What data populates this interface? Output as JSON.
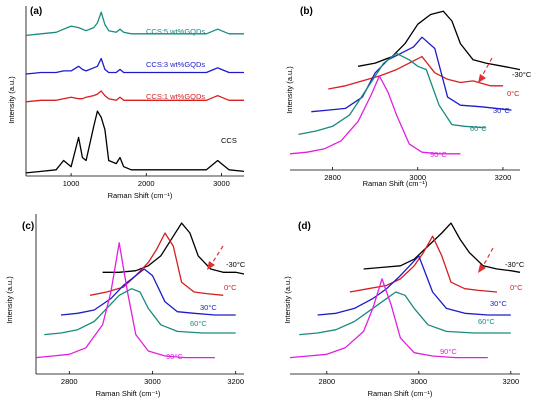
{
  "figure": {
    "panels": [
      {
        "letter": "(a)",
        "xlabel": "Raman Shift (cm⁻¹)",
        "ylabel": "Intensity (a.u.)",
        "xticks": [
          "1000",
          "2000",
          "3000"
        ],
        "series_labels": [
          "CCS:5 wt%GQDs",
          "CCS:3 wt%GQDs",
          "CCS:1 wt%GQDs",
          "CCS"
        ]
      },
      {
        "letter": "(b)",
        "xlabel": "Raman Shift (cm⁻¹)",
        "ylabel": "Intensity (a.u.)",
        "xticks": [
          "2800",
          "3000",
          "3200"
        ],
        "series_labels": [
          "-30°C",
          "0°C",
          "30°C",
          "60°C",
          "90°C"
        ]
      },
      {
        "letter": "(c)",
        "xlabel": "Raman Shift (cm⁻¹)",
        "ylabel": "Intensity (a.u.)",
        "xticks": [
          "2800",
          "3000",
          "3200"
        ],
        "series_labels": [
          "-30°C",
          "0°C",
          "30°C",
          "60°C",
          "90°C"
        ]
      },
      {
        "letter": "(d)",
        "xlabel": "Raman Shift (cm⁻¹)",
        "ylabel": "Intensity (a.u.)",
        "xticks": [
          "2800",
          "3000",
          "3200"
        ],
        "series_labels": [
          "-30°C",
          "0°C",
          "30°C",
          "60°C",
          "90°C"
        ]
      }
    ]
  },
  "colors": {
    "black": "#000000",
    "red": "#d42020",
    "blue": "#1c1cc8",
    "teal": "#1a8a80",
    "magenta": "#e020e0",
    "arrow": "#e03030"
  },
  "chart_data": [
    {
      "type": "line",
      "panel": "(a)",
      "title": "",
      "xlabel": "Raman Shift (cm⁻¹)",
      "ylabel": "Intensity (a.u.)",
      "xlim": [
        400,
        3300
      ],
      "x": [
        400,
        600,
        800,
        900,
        1000,
        1100,
        1150,
        1200,
        1300,
        1350,
        1400,
        1450,
        1500,
        1600,
        1650,
        1700,
        1800,
        2000,
        2200,
        2500,
        2800,
        2900,
        2950,
        3000,
        3100,
        3300
      ],
      "series": [
        {
          "name": "CCS:5 wt%GQDs",
          "color": "teal",
          "values": [
            0.91,
            0.92,
            0.93,
            0.95,
            0.97,
            0.96,
            0.95,
            0.94,
            0.96,
            0.99,
            1.06,
            0.98,
            0.94,
            0.93,
            0.95,
            0.93,
            0.92,
            0.92,
            0.92,
            0.92,
            0.92,
            0.94,
            0.95,
            0.94,
            0.92,
            0.92
          ]
        },
        {
          "name": "CCS:3 wt%GQDs",
          "color": "blue",
          "values": [
            0.66,
            0.67,
            0.67,
            0.68,
            0.68,
            0.71,
            0.69,
            0.68,
            0.7,
            0.71,
            0.76,
            0.69,
            0.67,
            0.67,
            0.69,
            0.67,
            0.67,
            0.67,
            0.67,
            0.67,
            0.67,
            0.69,
            0.7,
            0.69,
            0.67,
            0.67
          ]
        },
        {
          "name": "CCS:1 wt%GQDs",
          "color": "red",
          "values": [
            0.48,
            0.49,
            0.49,
            0.5,
            0.51,
            0.5,
            0.5,
            0.51,
            0.52,
            0.53,
            0.55,
            0.52,
            0.5,
            0.49,
            0.51,
            0.49,
            0.49,
            0.49,
            0.49,
            0.49,
            0.49,
            0.51,
            0.52,
            0.51,
            0.49,
            0.49
          ]
        },
        {
          "name": "CCS",
          "color": "black",
          "values": [
            0.02,
            0.03,
            0.04,
            0.1,
            0.06,
            0.25,
            0.12,
            0.1,
            0.32,
            0.42,
            0.38,
            0.3,
            0.1,
            0.08,
            0.12,
            0.06,
            0.04,
            0.04,
            0.04,
            0.04,
            0.04,
            0.08,
            0.1,
            0.08,
            0.04,
            0.03
          ]
        }
      ]
    },
    {
      "type": "line",
      "panel": "(b)",
      "title": "",
      "xlabel": "Raman Shift (cm⁻¹)",
      "ylabel": "Intensity (a.u.)",
      "xlim": [
        2700,
        3240
      ],
      "series": [
        {
          "name": "-30°C",
          "color": "black",
          "x": [
            2860,
            2900,
            2940,
            2970,
            3000,
            3030,
            3060,
            3080,
            3100,
            3130,
            3160,
            3200,
            3240
          ],
          "values": [
            0.64,
            0.66,
            0.7,
            0.78,
            0.9,
            0.96,
            0.98,
            0.92,
            0.78,
            0.68,
            0.66,
            0.64,
            0.62
          ]
        },
        {
          "name": "0°C",
          "color": "red",
          "x": [
            2790,
            2830,
            2870,
            2910,
            2950,
            2980,
            3010,
            3040,
            3070,
            3100,
            3130,
            3170,
            3200
          ],
          "values": [
            0.5,
            0.52,
            0.55,
            0.58,
            0.62,
            0.66,
            0.7,
            0.6,
            0.56,
            0.54,
            0.55,
            0.52,
            0.52
          ]
        },
        {
          "name": "30°C",
          "color": "blue",
          "x": [
            2750,
            2790,
            2830,
            2870,
            2900,
            2930,
            2960,
            2990,
            3010,
            3040,
            3070,
            3100,
            3150,
            3220
          ],
          "values": [
            0.36,
            0.37,
            0.38,
            0.45,
            0.6,
            0.68,
            0.72,
            0.76,
            0.82,
            0.75,
            0.45,
            0.4,
            0.39,
            0.37
          ]
        },
        {
          "name": "60°C",
          "color": "teal",
          "x": [
            2720,
            2760,
            2800,
            2840,
            2880,
            2920,
            2950,
            2980,
            3000,
            3020,
            3050,
            3080,
            3110,
            3160
          ],
          "values": [
            0.22,
            0.24,
            0.27,
            0.34,
            0.5,
            0.66,
            0.72,
            0.68,
            0.64,
            0.62,
            0.4,
            0.28,
            0.27,
            0.26
          ]
        },
        {
          "name": "90°C",
          "color": "magenta",
          "x": [
            2700,
            2740,
            2780,
            2820,
            2860,
            2890,
            2910,
            2930,
            2950,
            2980,
            3010,
            3050,
            3100
          ],
          "values": [
            0.1,
            0.11,
            0.13,
            0.18,
            0.3,
            0.46,
            0.58,
            0.48,
            0.34,
            0.16,
            0.11,
            0.1,
            0.1
          ]
        }
      ]
    },
    {
      "type": "line",
      "panel": "(c)",
      "title": "",
      "xlabel": "Raman Shift (cm⁻¹)",
      "ylabel": "Intensity (a.u.)",
      "xlim": [
        2720,
        3220
      ],
      "series": [
        {
          "name": "-30°C",
          "color": "black",
          "x": [
            2880,
            2920,
            2960,
            2990,
            3020,
            3050,
            3070,
            3090,
            3110,
            3140,
            3170,
            3200,
            3220
          ],
          "values": [
            0.62,
            0.62,
            0.63,
            0.66,
            0.72,
            0.84,
            0.92,
            0.86,
            0.72,
            0.64,
            0.62,
            0.62,
            0.61
          ]
        },
        {
          "name": "0°C",
          "color": "red",
          "x": [
            2850,
            2890,
            2930,
            2960,
            2990,
            3010,
            3030,
            3050,
            3070,
            3100,
            3130,
            3170
          ],
          "values": [
            0.48,
            0.5,
            0.53,
            0.6,
            0.68,
            0.76,
            0.86,
            0.78,
            0.56,
            0.5,
            0.49,
            0.48
          ]
        },
        {
          "name": "30°C",
          "color": "blue",
          "x": [
            2780,
            2820,
            2860,
            2900,
            2930,
            2960,
            2980,
            3000,
            3030,
            3060,
            3100,
            3150,
            3200
          ],
          "values": [
            0.36,
            0.37,
            0.39,
            0.46,
            0.54,
            0.6,
            0.64,
            0.6,
            0.44,
            0.38,
            0.37,
            0.36,
            0.36
          ]
        },
        {
          "name": "60°C",
          "color": "teal",
          "x": [
            2740,
            2780,
            2820,
            2860,
            2890,
            2920,
            2950,
            2970,
            2990,
            3020,
            3060,
            3120,
            3200
          ],
          "values": [
            0.24,
            0.25,
            0.27,
            0.32,
            0.4,
            0.48,
            0.52,
            0.5,
            0.4,
            0.3,
            0.26,
            0.25,
            0.25
          ]
        },
        {
          "name": "90°C",
          "color": "magenta",
          "x": [
            2720,
            2760,
            2800,
            2840,
            2880,
            2900,
            2920,
            2940,
            2960,
            2990,
            3030,
            3080,
            3150
          ],
          "values": [
            0.1,
            0.11,
            0.12,
            0.16,
            0.3,
            0.5,
            0.8,
            0.5,
            0.24,
            0.14,
            0.11,
            0.1,
            0.1
          ]
        }
      ]
    },
    {
      "type": "line",
      "panel": "(d)",
      "title": "",
      "xlabel": "Raman Shift (cm⁻¹)",
      "ylabel": "Intensity (a.u.)",
      "xlim": [
        2720,
        3220
      ],
      "series": [
        {
          "name": "-30°C",
          "color": "black",
          "x": [
            2880,
            2920,
            2960,
            2990,
            3020,
            3050,
            3070,
            3090,
            3110,
            3140,
            3170,
            3200,
            3220
          ],
          "values": [
            0.64,
            0.65,
            0.66,
            0.7,
            0.78,
            0.86,
            0.92,
            0.82,
            0.74,
            0.66,
            0.64,
            0.63,
            0.62
          ]
        },
        {
          "name": "0°C",
          "color": "red",
          "x": [
            2850,
            2890,
            2930,
            2960,
            2990,
            3010,
            3030,
            3050,
            3070,
            3100,
            3130,
            3170
          ],
          "values": [
            0.5,
            0.52,
            0.54,
            0.58,
            0.66,
            0.74,
            0.84,
            0.72,
            0.56,
            0.52,
            0.51,
            0.5
          ]
        },
        {
          "name": "30°C",
          "color": "blue",
          "x": [
            2780,
            2820,
            2860,
            2900,
            2930,
            2960,
            2980,
            3000,
            3030,
            3060,
            3100,
            3150,
            3200
          ],
          "values": [
            0.36,
            0.37,
            0.4,
            0.46,
            0.52,
            0.6,
            0.66,
            0.72,
            0.5,
            0.4,
            0.37,
            0.36,
            0.36
          ]
        },
        {
          "name": "60°C",
          "color": "teal",
          "x": [
            2740,
            2780,
            2820,
            2860,
            2890,
            2920,
            2950,
            2970,
            2990,
            3020,
            3060,
            3120,
            3200
          ],
          "values": [
            0.24,
            0.25,
            0.27,
            0.32,
            0.38,
            0.44,
            0.5,
            0.48,
            0.4,
            0.3,
            0.26,
            0.25,
            0.25
          ]
        },
        {
          "name": "90°C",
          "color": "magenta",
          "x": [
            2720,
            2760,
            2800,
            2840,
            2880,
            2900,
            2920,
            2940,
            2960,
            2990,
            3030,
            3080,
            3150
          ],
          "values": [
            0.1,
            0.11,
            0.12,
            0.16,
            0.26,
            0.4,
            0.58,
            0.42,
            0.22,
            0.13,
            0.11,
            0.1,
            0.1
          ]
        }
      ]
    }
  ]
}
